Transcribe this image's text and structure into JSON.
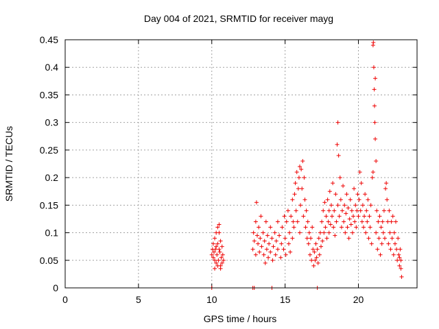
{
  "chart_data": {
    "type": "scatter",
    "title": "Day 004 of 2021, SRMTID for receiver mayg",
    "xlabel": "GPS time / hours",
    "ylabel": "SRMTID / TECUs",
    "xlim": [
      0,
      24
    ],
    "ylim": [
      0,
      0.45
    ],
    "xticks": [
      0,
      5,
      10,
      15,
      20
    ],
    "yticks": [
      0,
      0.05,
      0.1,
      0.15,
      0.2,
      0.25,
      0.3,
      0.35,
      0.4,
      0.45
    ],
    "xtick_labels": [
      "0",
      "5",
      "10",
      "15",
      "20"
    ],
    "ytick_labels": [
      "0",
      "0.05",
      "0.1",
      "0.15",
      "0.2",
      "0.25",
      "0.3",
      "0.35",
      "0.4",
      "0.45"
    ],
    "grid": true,
    "marker": "+",
    "color": "#ee0000",
    "series": [
      {
        "name": "SRMTID",
        "points": [
          [
            10.0,
            0.0
          ],
          [
            10.0,
            0.06
          ],
          [
            10.05,
            0.07
          ],
          [
            10.1,
            0.08
          ],
          [
            10.1,
            0.055
          ],
          [
            10.15,
            0.065
          ],
          [
            10.2,
            0.09
          ],
          [
            10.2,
            0.05
          ],
          [
            10.25,
            0.07
          ],
          [
            10.3,
            0.1
          ],
          [
            10.3,
            0.075
          ],
          [
            10.35,
            0.06
          ],
          [
            10.4,
            0.11
          ],
          [
            10.4,
            0.08
          ],
          [
            10.45,
            0.05
          ],
          [
            10.5,
            0.07
          ],
          [
            10.5,
            0.1
          ],
          [
            10.55,
            0.065
          ],
          [
            10.6,
            0.04
          ],
          [
            10.6,
            0.085
          ],
          [
            10.65,
            0.055
          ],
          [
            10.7,
            0.075
          ],
          [
            10.7,
            0.045
          ],
          [
            10.75,
            0.06
          ],
          [
            10.8,
            0.05
          ],
          [
            10.2,
            0.035
          ],
          [
            10.4,
            0.04
          ],
          [
            10.6,
            0.035
          ],
          [
            10.3,
            0.045
          ],
          [
            10.5,
            0.115
          ],
          [
            12.8,
            0.0
          ],
          [
            12.9,
            0.0
          ],
          [
            14.1,
            0.0
          ],
          [
            17.2,
            0.0
          ],
          [
            12.8,
            0.07
          ],
          [
            12.85,
            0.1
          ],
          [
            12.9,
            0.085
          ],
          [
            13.0,
            0.12
          ],
          [
            13.0,
            0.06
          ],
          [
            13.05,
            0.155
          ],
          [
            13.1,
            0.095
          ],
          [
            13.15,
            0.08
          ],
          [
            13.2,
            0.11
          ],
          [
            13.25,
            0.065
          ],
          [
            13.3,
            0.09
          ],
          [
            13.35,
            0.13
          ],
          [
            13.4,
            0.075
          ],
          [
            13.5,
            0.1
          ],
          [
            13.55,
            0.06
          ],
          [
            13.6,
            0.085
          ],
          [
            13.65,
            0.045
          ],
          [
            13.7,
            0.12
          ],
          [
            13.75,
            0.07
          ],
          [
            13.8,
            0.095
          ],
          [
            13.85,
            0.055
          ],
          [
            13.9,
            0.08
          ],
          [
            14.0,
            0.11
          ],
          [
            14.0,
            0.065
          ],
          [
            14.1,
            0.09
          ],
          [
            14.15,
            0.05
          ],
          [
            14.2,
            0.075
          ],
          [
            14.3,
            0.1
          ],
          [
            14.35,
            0.06
          ],
          [
            14.4,
            0.085
          ],
          [
            14.5,
            0.12
          ],
          [
            14.5,
            0.07
          ],
          [
            14.6,
            0.095
          ],
          [
            14.7,
            0.055
          ],
          [
            14.75,
            0.08
          ],
          [
            14.8,
            0.11
          ],
          [
            14.9,
            0.07
          ],
          [
            14.95,
            0.13
          ],
          [
            15.0,
            0.09
          ],
          [
            15.05,
            0.06
          ],
          [
            15.1,
            0.12
          ],
          [
            15.2,
            0.14
          ],
          [
            15.25,
            0.08
          ],
          [
            15.3,
            0.1
          ],
          [
            15.35,
            0.065
          ],
          [
            15.4,
            0.13
          ],
          [
            15.5,
            0.16
          ],
          [
            15.5,
            0.09
          ],
          [
            15.55,
            0.12
          ],
          [
            15.6,
            0.11
          ],
          [
            15.65,
            0.17
          ],
          [
            15.7,
            0.19
          ],
          [
            15.75,
            0.14
          ],
          [
            15.8,
            0.21
          ],
          [
            15.85,
            0.12
          ],
          [
            15.9,
            0.18
          ],
          [
            15.95,
            0.2
          ],
          [
            16.0,
            0.22
          ],
          [
            16.0,
            0.1
          ],
          [
            16.05,
            0.15
          ],
          [
            16.1,
            0.215
          ],
          [
            16.15,
            0.18
          ],
          [
            16.2,
            0.23
          ],
          [
            16.25,
            0.13
          ],
          [
            16.3,
            0.2
          ],
          [
            16.35,
            0.16
          ],
          [
            16.4,
            0.11
          ],
          [
            16.45,
            0.14
          ],
          [
            16.5,
            0.09
          ],
          [
            16.55,
            0.12
          ],
          [
            16.6,
            0.08
          ],
          [
            16.65,
            0.1
          ],
          [
            16.7,
            0.06
          ],
          [
            16.75,
            0.09
          ],
          [
            16.8,
            0.05
          ],
          [
            16.85,
            0.11
          ],
          [
            16.9,
            0.07
          ],
          [
            16.95,
            0.04
          ],
          [
            17.0,
            0.065
          ],
          [
            17.05,
            0.05
          ],
          [
            17.1,
            0.08
          ],
          [
            17.15,
            0.055
          ],
          [
            17.2,
            0.07
          ],
          [
            17.25,
            0.045
          ],
          [
            17.3,
            0.09
          ],
          [
            17.35,
            0.06
          ],
          [
            17.4,
            0.1
          ],
          [
            17.45,
            0.075
          ],
          [
            17.5,
            0.12
          ],
          [
            17.55,
            0.085
          ],
          [
            17.6,
            0.14
          ],
          [
            17.65,
            0.1
          ],
          [
            17.7,
            0.155
          ],
          [
            17.75,
            0.11
          ],
          [
            17.8,
            0.13
          ],
          [
            17.85,
            0.09
          ],
          [
            17.9,
            0.16
          ],
          [
            17.95,
            0.12
          ],
          [
            18.0,
            0.14
          ],
          [
            18.0,
            0.1
          ],
          [
            18.05,
            0.175
          ],
          [
            18.1,
            0.115
          ],
          [
            18.15,
            0.15
          ],
          [
            18.2,
            0.13
          ],
          [
            18.25,
            0.19
          ],
          [
            18.3,
            0.11
          ],
          [
            18.35,
            0.14
          ],
          [
            18.4,
            0.095
          ],
          [
            18.45,
            0.17
          ],
          [
            18.5,
            0.12
          ],
          [
            18.55,
            0.26
          ],
          [
            18.6,
            0.3
          ],
          [
            18.6,
            0.15
          ],
          [
            18.65,
            0.24
          ],
          [
            18.7,
            0.13
          ],
          [
            18.75,
            0.2
          ],
          [
            18.8,
            0.16
          ],
          [
            18.85,
            0.11
          ],
          [
            18.9,
            0.14
          ],
          [
            18.95,
            0.185
          ],
          [
            19.0,
            0.12
          ],
          [
            19.05,
            0.15
          ],
          [
            19.1,
            0.1
          ],
          [
            19.15,
            0.135
          ],
          [
            19.2,
            0.17
          ],
          [
            19.25,
            0.11
          ],
          [
            19.3,
            0.145
          ],
          [
            19.35,
            0.09
          ],
          [
            19.4,
            0.125
          ],
          [
            19.45,
            0.16
          ],
          [
            19.5,
            0.115
          ],
          [
            19.55,
            0.14
          ],
          [
            19.6,
            0.1
          ],
          [
            19.65,
            0.13
          ],
          [
            19.7,
            0.18
          ],
          [
            19.75,
            0.12
          ],
          [
            19.8,
            0.15
          ],
          [
            19.85,
            0.11
          ],
          [
            19.9,
            0.14
          ],
          [
            19.95,
            0.17
          ],
          [
            20.0,
            0.13
          ],
          [
            20.05,
            0.16
          ],
          [
            20.1,
            0.21
          ],
          [
            20.15,
            0.14
          ],
          [
            20.2,
            0.19
          ],
          [
            20.25,
            0.12
          ],
          [
            20.3,
            0.15
          ],
          [
            20.35,
            0.11
          ],
          [
            20.4,
            0.13
          ],
          [
            20.45,
            0.17
          ],
          [
            20.5,
            0.1
          ],
          [
            20.55,
            0.14
          ],
          [
            20.6,
            0.12
          ],
          [
            20.65,
            0.16
          ],
          [
            20.7,
            0.09
          ],
          [
            20.75,
            0.13
          ],
          [
            20.8,
            0.11
          ],
          [
            20.85,
            0.15
          ],
          [
            20.9,
            0.08
          ],
          [
            20.95,
            0.2
          ],
          [
            21.0,
            0.44
          ],
          [
            21.0,
            0.21
          ],
          [
            21.02,
            0.445
          ],
          [
            21.05,
            0.4
          ],
          [
            21.08,
            0.36
          ],
          [
            21.1,
            0.33
          ],
          [
            21.12,
            0.3
          ],
          [
            21.15,
            0.38
          ],
          [
            21.15,
            0.27
          ],
          [
            21.2,
            0.23
          ],
          [
            21.2,
            0.1
          ],
          [
            21.25,
            0.14
          ],
          [
            21.3,
            0.07
          ],
          [
            21.35,
            0.12
          ],
          [
            21.4,
            0.09
          ],
          [
            21.45,
            0.13
          ],
          [
            21.5,
            0.06
          ],
          [
            21.55,
            0.11
          ],
          [
            21.6,
            0.08
          ],
          [
            21.65,
            0.12
          ],
          [
            21.7,
            0.1
          ],
          [
            21.75,
            0.14
          ],
          [
            21.8,
            0.09
          ],
          [
            21.85,
            0.18
          ],
          [
            21.9,
            0.19
          ],
          [
            21.95,
            0.16
          ],
          [
            22.0,
            0.12
          ],
          [
            22.05,
            0.08
          ],
          [
            22.1,
            0.14
          ],
          [
            22.15,
            0.1
          ],
          [
            22.2,
            0.07
          ],
          [
            22.25,
            0.12
          ],
          [
            22.3,
            0.09
          ],
          [
            22.35,
            0.13
          ],
          [
            22.4,
            0.06
          ],
          [
            22.45,
            0.1
          ],
          [
            22.5,
            0.08
          ],
          [
            22.55,
            0.12
          ],
          [
            22.6,
            0.07
          ],
          [
            22.65,
            0.05
          ],
          [
            22.7,
            0.09
          ],
          [
            22.75,
            0.06
          ],
          [
            22.8,
            0.04
          ],
          [
            22.85,
            0.07
          ],
          [
            22.9,
            0.05
          ],
          [
            22.95,
            0.02
          ],
          [
            22.9,
            0.035
          ],
          [
            22.8,
            0.055
          ]
        ]
      }
    ]
  }
}
